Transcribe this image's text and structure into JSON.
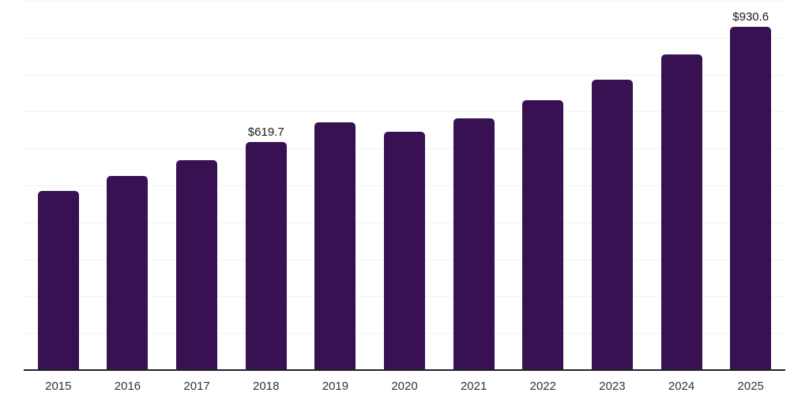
{
  "chart_data": {
    "type": "bar",
    "title": "",
    "xlabel": "",
    "ylabel": "",
    "categories": [
      "2015",
      "2016",
      "2017",
      "2018",
      "2019",
      "2020",
      "2021",
      "2022",
      "2023",
      "2024",
      "2025"
    ],
    "values": [
      487,
      527,
      571,
      619.7,
      673,
      648,
      684,
      733,
      789,
      856,
      930.6
    ],
    "data_labels": [
      null,
      null,
      null,
      "$619.7",
      null,
      null,
      null,
      null,
      null,
      null,
      "$930.6"
    ],
    "ylim": [
      0,
      1000
    ],
    "ytick_interval": 100,
    "grid": "horizontal",
    "legend_position": "none",
    "colors": {
      "bar": "#371151",
      "axis_line": "#222222",
      "gridline": "#f2f2f2",
      "data_label_text": "#1a1a1a",
      "tick_text": "#333333"
    }
  }
}
